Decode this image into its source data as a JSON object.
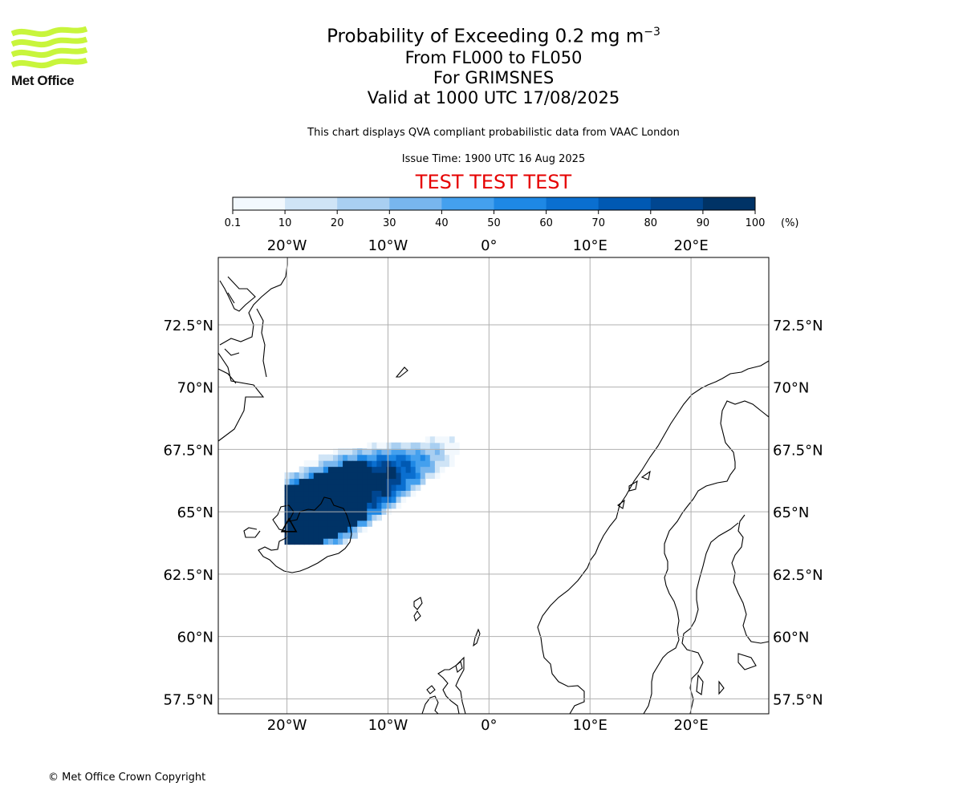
{
  "organisation": {
    "logo_text": "Met Office",
    "logo_color": "#c8f53c",
    "copyright": "© Met Office Crown Copyright"
  },
  "header": {
    "title_prefix": "Probability of Exceeding 0.2 mg m",
    "title_exponent": "−3",
    "level_range": "From FL000 to FL050",
    "volcano": "For GRIMSNES",
    "valid_time": "Valid at 1000 UTC 17/08/2025",
    "disclaimer": "This chart displays QVA compliant probabilistic data from VAAC London",
    "issue_time": "Issue Time: 1900 UTC 16 Aug 2025",
    "test_banner": "TEST TEST TEST",
    "test_banner_color": "#e60000"
  },
  "colorbar": {
    "ticks": [
      "0.1",
      "10",
      "20",
      "30",
      "40",
      "50",
      "60",
      "70",
      "80",
      "90",
      "100"
    ],
    "unit": "(%)",
    "colors": [
      "#f2f8fd",
      "#cfe4f6",
      "#a9cff1",
      "#78b6ee",
      "#44a0ee",
      "#1e88e5",
      "#0a6fd0",
      "#0059b3",
      "#004690",
      "#003366"
    ]
  },
  "map": {
    "projection": "plate-carree",
    "lon_range": [
      -26.8,
      27.7
    ],
    "lat_range": [
      56.9,
      75.2
    ],
    "grid": true,
    "lon_ticks": [
      {
        "value": -20,
        "label": "20°W"
      },
      {
        "value": -10,
        "label": "10°W"
      },
      {
        "value": 0,
        "label": "0°"
      },
      {
        "value": 10,
        "label": "10°E"
      },
      {
        "value": 20,
        "label": "20°E"
      }
    ],
    "lat_ticks": [
      {
        "value": 72.5,
        "label": "72.5°N"
      },
      {
        "value": 70,
        "label": "70°N"
      },
      {
        "value": 67.5,
        "label": "67.5°N"
      },
      {
        "value": 65,
        "label": "65°N"
      },
      {
        "value": 62.5,
        "label": "62.5°N"
      },
      {
        "value": 60,
        "label": "60°N"
      },
      {
        "value": 57.5,
        "label": "57.5°N"
      }
    ],
    "volcano_marker": {
      "lon": -19.8,
      "lat": 64.4,
      "symbol": "triangle"
    }
  }
}
